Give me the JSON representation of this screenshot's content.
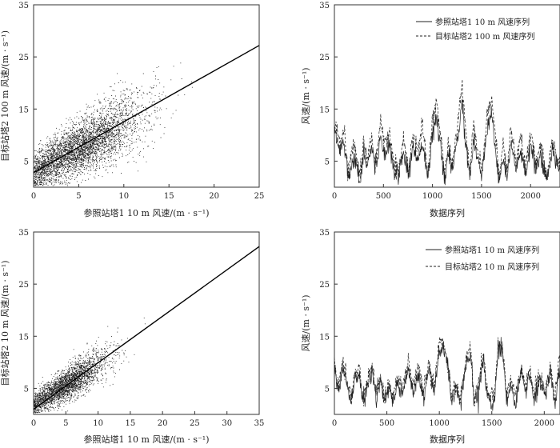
{
  "chart_data": [
    {
      "id": "scatter_100m",
      "type": "scatter",
      "xlabel": "参照站塔1  10  m  风速/(m · s⁻¹)",
      "ylabel": "目标站塔2  100  m  风速/(m · s⁻¹)",
      "xlim": [
        0,
        25
      ],
      "ylim": [
        0,
        35
      ],
      "xticks": [
        0,
        5,
        10,
        15,
        20,
        25
      ],
      "yticks": [
        5,
        15,
        25,
        35
      ],
      "point_color": "#222222",
      "fit_line": {
        "x": [
          0,
          25
        ],
        "y": [
          2.8,
          27.2
        ]
      },
      "cloud": {
        "x_center": 5,
        "x_spread": 3.5,
        "x_max": 18,
        "slope": 0.9,
        "intercept": 3.0,
        "noise": 3.0,
        "y_max": 26
      }
    },
    {
      "id": "series_100m",
      "type": "line",
      "xlabel": "数据序列",
      "ylabel": "风速/(m · s⁻¹)",
      "xlim": [
        0,
        2300
      ],
      "ylim": [
        0,
        35
      ],
      "xticks": [
        0,
        500,
        1000,
        1500,
        2000
      ],
      "yticks": [
        5,
        15,
        25,
        35
      ],
      "series": [
        {
          "name": "参照站塔1  10  m  风速序列",
          "style": "solid",
          "anchors": [
            [
              0,
              11
            ],
            [
              60,
              7
            ],
            [
              100,
              9
            ],
            [
              140,
              2
            ],
            [
              200,
              6
            ],
            [
              260,
              1
            ],
            [
              300,
              7
            ],
            [
              330,
              4
            ],
            [
              380,
              8
            ],
            [
              420,
              3
            ],
            [
              470,
              10
            ],
            [
              510,
              6
            ],
            [
              560,
              9
            ],
            [
              600,
              4
            ],
            [
              650,
              2
            ],
            [
              700,
              7
            ],
            [
              760,
              2
            ],
            [
              800,
              8
            ],
            [
              850,
              5
            ],
            [
              900,
              9
            ],
            [
              950,
              2
            ],
            [
              1000,
              10
            ],
            [
              1040,
              13
            ],
            [
              1080,
              8
            ],
            [
              1120,
              2
            ],
            [
              1160,
              6
            ],
            [
              1200,
              3
            ],
            [
              1260,
              10
            ],
            [
              1300,
              16
            ],
            [
              1340,
              8
            ],
            [
              1380,
              2
            ],
            [
              1420,
              9
            ],
            [
              1460,
              5
            ],
            [
              1500,
              2
            ],
            [
              1560,
              11
            ],
            [
              1600,
              15
            ],
            [
              1640,
              7
            ],
            [
              1680,
              1
            ],
            [
              1720,
              6
            ],
            [
              1760,
              2
            ],
            [
              1800,
              9
            ],
            [
              1850,
              3
            ],
            [
              1900,
              7
            ],
            [
              1950,
              2
            ],
            [
              2000,
              8
            ],
            [
              2060,
              3
            ],
            [
              2100,
              6
            ],
            [
              2160,
              1
            ],
            [
              2220,
              7
            ],
            [
              2280,
              4
            ]
          ]
        },
        {
          "name": "目标站塔2  100  m  风速序列",
          "style": "dashed",
          "anchors": [
            [
              0,
              13
            ],
            [
              60,
              9
            ],
            [
              100,
              11
            ],
            [
              140,
              3
            ],
            [
              200,
              8
            ],
            [
              260,
              2
            ],
            [
              300,
              9
            ],
            [
              330,
              5
            ],
            [
              380,
              10
            ],
            [
              420,
              4
            ],
            [
              470,
              12
            ],
            [
              510,
              8
            ],
            [
              560,
              11
            ],
            [
              600,
              5
            ],
            [
              650,
              3
            ],
            [
              700,
              9
            ],
            [
              760,
              3
            ],
            [
              800,
              10
            ],
            [
              850,
              7
            ],
            [
              900,
              12
            ],
            [
              950,
              3
            ],
            [
              1000,
              13
            ],
            [
              1040,
              16
            ],
            [
              1080,
              11
            ],
            [
              1120,
              3
            ],
            [
              1160,
              8
            ],
            [
              1200,
              4
            ],
            [
              1260,
              13
            ],
            [
              1300,
              19
            ],
            [
              1340,
              11
            ],
            [
              1380,
              3
            ],
            [
              1420,
              12
            ],
            [
              1460,
              7
            ],
            [
              1500,
              3
            ],
            [
              1560,
              14
            ],
            [
              1600,
              18
            ],
            [
              1640,
              10
            ],
            [
              1680,
              2
            ],
            [
              1720,
              8
            ],
            [
              1760,
              3
            ],
            [
              1800,
              12
            ],
            [
              1850,
              4
            ],
            [
              1900,
              10
            ],
            [
              1950,
              3
            ],
            [
              2000,
              11
            ],
            [
              2060,
              4
            ],
            [
              2100,
              8
            ],
            [
              2160,
              2
            ],
            [
              2220,
              9
            ],
            [
              2280,
              5
            ]
          ]
        }
      ],
      "legend": "top-right"
    },
    {
      "id": "scatter_10m",
      "type": "scatter",
      "xlabel": "参照站塔1  10  m  风速/(m · s⁻¹)",
      "ylabel": "目标站塔2  10  m  风速/(m · s⁻¹)",
      "xlim": [
        0,
        35
      ],
      "ylim": [
        0,
        35
      ],
      "xticks": [
        0,
        5,
        10,
        15,
        20,
        25,
        30,
        35
      ],
      "yticks": [
        5,
        15,
        25,
        35
      ],
      "point_color": "#222222",
      "fit_line": {
        "x": [
          0,
          35
        ],
        "y": [
          1.0,
          32.2
        ]
      },
      "cloud": {
        "x_center": 5,
        "x_spread": 3.2,
        "x_max": 18,
        "slope": 0.78,
        "intercept": 1.8,
        "noise": 1.8,
        "y_max": 21
      }
    },
    {
      "id": "series_10m",
      "type": "line",
      "xlabel": "数据序列",
      "ylabel": "风速/(m · s⁻¹)",
      "xlim": [
        0,
        2150
      ],
      "ylim": [
        0,
        35
      ],
      "xticks": [
        0,
        500,
        1000,
        1500,
        2000
      ],
      "yticks": [
        5,
        15,
        25,
        35
      ],
      "series": [
        {
          "name": "参照站塔1  10  m  风速序列",
          "style": "solid",
          "anchors": [
            [
              0,
              9
            ],
            [
              40,
              4
            ],
            [
              80,
              9
            ],
            [
              120,
              6
            ],
            [
              160,
              2
            ],
            [
              200,
              7
            ],
            [
              240,
              8
            ],
            [
              270,
              2
            ],
            [
              320,
              6
            ],
            [
              360,
              8
            ],
            [
              400,
              3
            ],
            [
              440,
              7
            ],
            [
              470,
              2
            ],
            [
              520,
              5
            ],
            [
              560,
              3
            ],
            [
              600,
              6
            ],
            [
              650,
              4
            ],
            [
              700,
              9
            ],
            [
              750,
              4
            ],
            [
              800,
              8
            ],
            [
              850,
              3
            ],
            [
              900,
              9
            ],
            [
              950,
              4
            ],
            [
              1000,
              12
            ],
            [
              1040,
              13
            ],
            [
              1080,
              9
            ],
            [
              1120,
              2
            ],
            [
              1160,
              5
            ],
            [
              1200,
              2
            ],
            [
              1260,
              10
            ],
            [
              1300,
              12
            ],
            [
              1330,
              2
            ],
            [
              1380,
              5
            ],
            [
              1420,
              11
            ],
            [
              1460,
              3
            ],
            [
              1520,
              2
            ],
            [
              1560,
              12
            ],
            [
              1600,
              13
            ],
            [
              1640,
              3
            ],
            [
              1680,
              6
            ],
            [
              1720,
              2
            ],
            [
              1780,
              8
            ],
            [
              1820,
              4
            ],
            [
              1860,
              8
            ],
            [
              1900,
              3
            ],
            [
              1960,
              7
            ],
            [
              2000,
              3
            ],
            [
              2060,
              8
            ],
            [
              2100,
              2
            ],
            [
              2140,
              8
            ]
          ]
        },
        {
          "name": "目标站塔2  10  m  风速序列",
          "style": "dashed",
          "anchors": [
            [
              0,
              10
            ],
            [
              40,
              5
            ],
            [
              80,
              10
            ],
            [
              120,
              7
            ],
            [
              160,
              3
            ],
            [
              200,
              8
            ],
            [
              240,
              9
            ],
            [
              270,
              3
            ],
            [
              320,
              7
            ],
            [
              360,
              9
            ],
            [
              400,
              4
            ],
            [
              440,
              8
            ],
            [
              470,
              3
            ],
            [
              520,
              6
            ],
            [
              560,
              4
            ],
            [
              600,
              7
            ],
            [
              650,
              5
            ],
            [
              700,
              10
            ],
            [
              750,
              5
            ],
            [
              800,
              9
            ],
            [
              850,
              4
            ],
            [
              900,
              10
            ],
            [
              950,
              5
            ],
            [
              1000,
              14
            ],
            [
              1040,
              14
            ],
            [
              1080,
              10
            ],
            [
              1120,
              3
            ],
            [
              1160,
              6
            ],
            [
              1200,
              3
            ],
            [
              1260,
              11
            ],
            [
              1300,
              13
            ],
            [
              1330,
              3
            ],
            [
              1380,
              6
            ],
            [
              1420,
              12
            ],
            [
              1460,
              4
            ],
            [
              1520,
              3
            ],
            [
              1560,
              13
            ],
            [
              1600,
              14
            ],
            [
              1640,
              4
            ],
            [
              1680,
              7
            ],
            [
              1720,
              3
            ],
            [
              1780,
              9
            ],
            [
              1820,
              5
            ],
            [
              1860,
              9
            ],
            [
              1900,
              4
            ],
            [
              1960,
              8
            ],
            [
              2000,
              4
            ],
            [
              2060,
              9
            ],
            [
              2100,
              3
            ],
            [
              2140,
              10
            ]
          ]
        }
      ],
      "legend": "top-right"
    }
  ]
}
